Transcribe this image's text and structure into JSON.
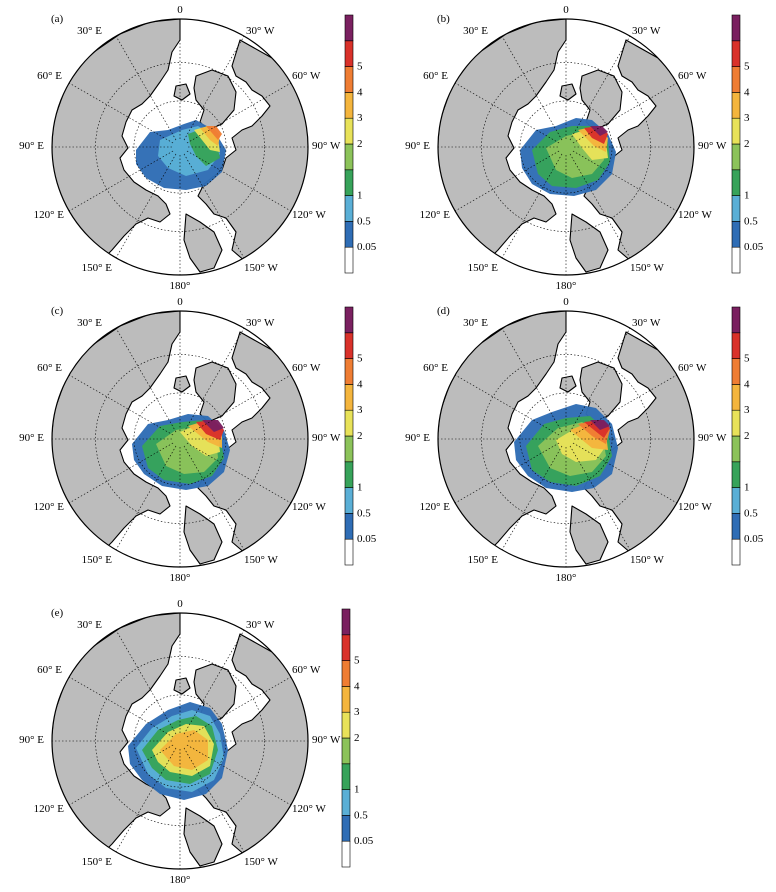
{
  "colorbar": {
    "labels": [
      "0.05",
      "0.5",
      "1",
      "2",
      "3",
      "4",
      "5"
    ],
    "colors": [
      "#ffffff",
      "#2f6db5",
      "#5aafd6",
      "#37a35a",
      "#8cc35a",
      "#e8e259",
      "#f4b53d",
      "#ef7d33",
      "#d9312a",
      "#7a2060"
    ]
  },
  "map_colors": {
    "land": "#bcbcbc",
    "ocean": "#ffffff",
    "coast": "#000000",
    "grid": "#000000"
  },
  "longitude_labels": {
    "top": "0",
    "e30": "30° E",
    "w30": "30° W",
    "e60": "60° E",
    "w60": "60° W",
    "e90": "90° E",
    "w90": "90° W",
    "e120": "120° E",
    "w120": "120° W",
    "e150": "150° E",
    "w150": "150° W",
    "bottom": "180°"
  },
  "panels": [
    {
      "label": "(a)",
      "field": "a"
    },
    {
      "label": "(b)",
      "field": "b"
    },
    {
      "label": "(c)",
      "field": "c"
    },
    {
      "label": "(d)",
      "field": "d"
    },
    {
      "label": "(e)",
      "field": "e"
    }
  ]
}
